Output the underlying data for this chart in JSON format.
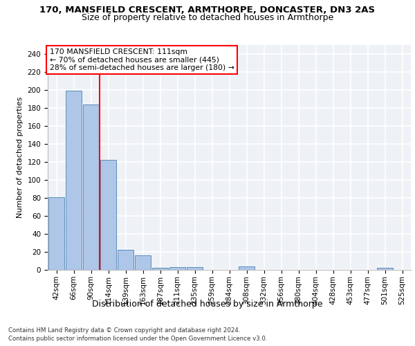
{
  "title_line1": "170, MANSFIELD CRESCENT, ARMTHORPE, DONCASTER, DN3 2AS",
  "title_line2": "Size of property relative to detached houses in Armthorpe",
  "xlabel": "Distribution of detached houses by size in Armthorpe",
  "ylabel": "Number of detached properties",
  "bar_labels": [
    "42sqm",
    "66sqm",
    "90sqm",
    "114sqm",
    "139sqm",
    "163sqm",
    "187sqm",
    "211sqm",
    "235sqm",
    "259sqm",
    "284sqm",
    "308sqm",
    "332sqm",
    "356sqm",
    "380sqm",
    "404sqm",
    "428sqm",
    "453sqm",
    "477sqm",
    "501sqm",
    "525sqm"
  ],
  "bar_values": [
    81,
    199,
    184,
    122,
    22,
    16,
    2,
    3,
    3,
    0,
    0,
    4,
    0,
    0,
    0,
    0,
    0,
    0,
    0,
    2,
    0
  ],
  "bar_color": "#aec6e8",
  "bar_edge_color": "#5b8db8",
  "red_line_x": 2.5,
  "annotation_text": "170 MANSFIELD CRESCENT: 111sqm\n← 70% of detached houses are smaller (445)\n28% of semi-detached houses are larger (180) →",
  "ylim": [
    0,
    250
  ],
  "yticks": [
    0,
    20,
    40,
    60,
    80,
    100,
    120,
    140,
    160,
    180,
    200,
    220,
    240
  ],
  "footer_line1": "Contains HM Land Registry data © Crown copyright and database right 2024.",
  "footer_line2": "Contains public sector information licensed under the Open Government Licence v3.0.",
  "background_color": "#eef2f7",
  "grid_color": "#ffffff",
  "title1_fontsize": 9.5,
  "title2_fontsize": 9,
  "ylabel_fontsize": 8,
  "xlabel_fontsize": 9,
  "tick_fontsize": 7.5,
  "annot_fontsize": 7.8,
  "footer_fontsize": 6.2
}
